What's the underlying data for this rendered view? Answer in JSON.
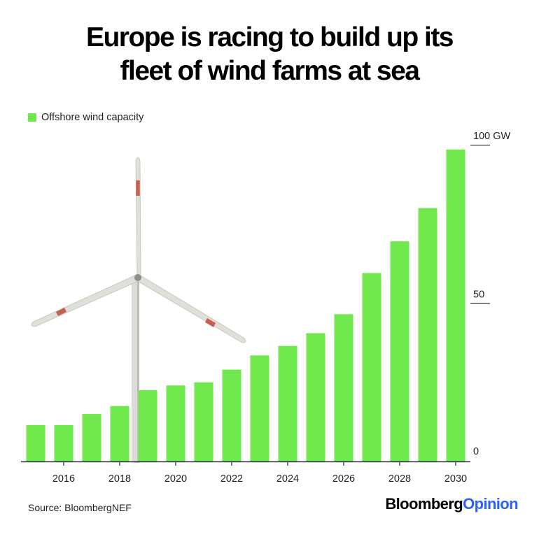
{
  "title_line1": "Europe is racing to build up its",
  "title_line2": "fleet of wind farms at sea",
  "legend_label": "Offshore wind capacity",
  "source": "Source: BloombergNEF",
  "brand_part1": "Bloomberg",
  "brand_part2": "Opinion",
  "colors": {
    "bar": "#72e84f",
    "axis": "#000000",
    "brand_accent": "#2b61ff"
  },
  "chart_data": {
    "type": "bar",
    "categories": [
      2015,
      2016,
      2017,
      2018,
      2019,
      2020,
      2021,
      2022,
      2023,
      2024,
      2025,
      2026,
      2027,
      2028,
      2029,
      2030
    ],
    "series": [
      {
        "name": "Offshore wind capacity",
        "values": [
          11.5,
          11.5,
          15,
          17.5,
          22.5,
          24,
          25,
          29,
          33.5,
          36.5,
          40.5,
          46.5,
          59.5,
          69.5,
          80,
          98.5
        ]
      }
    ],
    "ylim": [
      0,
      100
    ],
    "y_ticks": [
      0,
      50,
      100
    ],
    "y_tick_labels": [
      "0",
      "50",
      "100 GW"
    ],
    "x_tick_years": [
      2016,
      2018,
      2020,
      2022,
      2024,
      2026,
      2028,
      2030
    ],
    "x_tick_labels": [
      "2016",
      "2018",
      "2020",
      "2022",
      "2024",
      "2026",
      "2028",
      "2030"
    ],
    "legend_position": "top-left",
    "grid": false
  }
}
